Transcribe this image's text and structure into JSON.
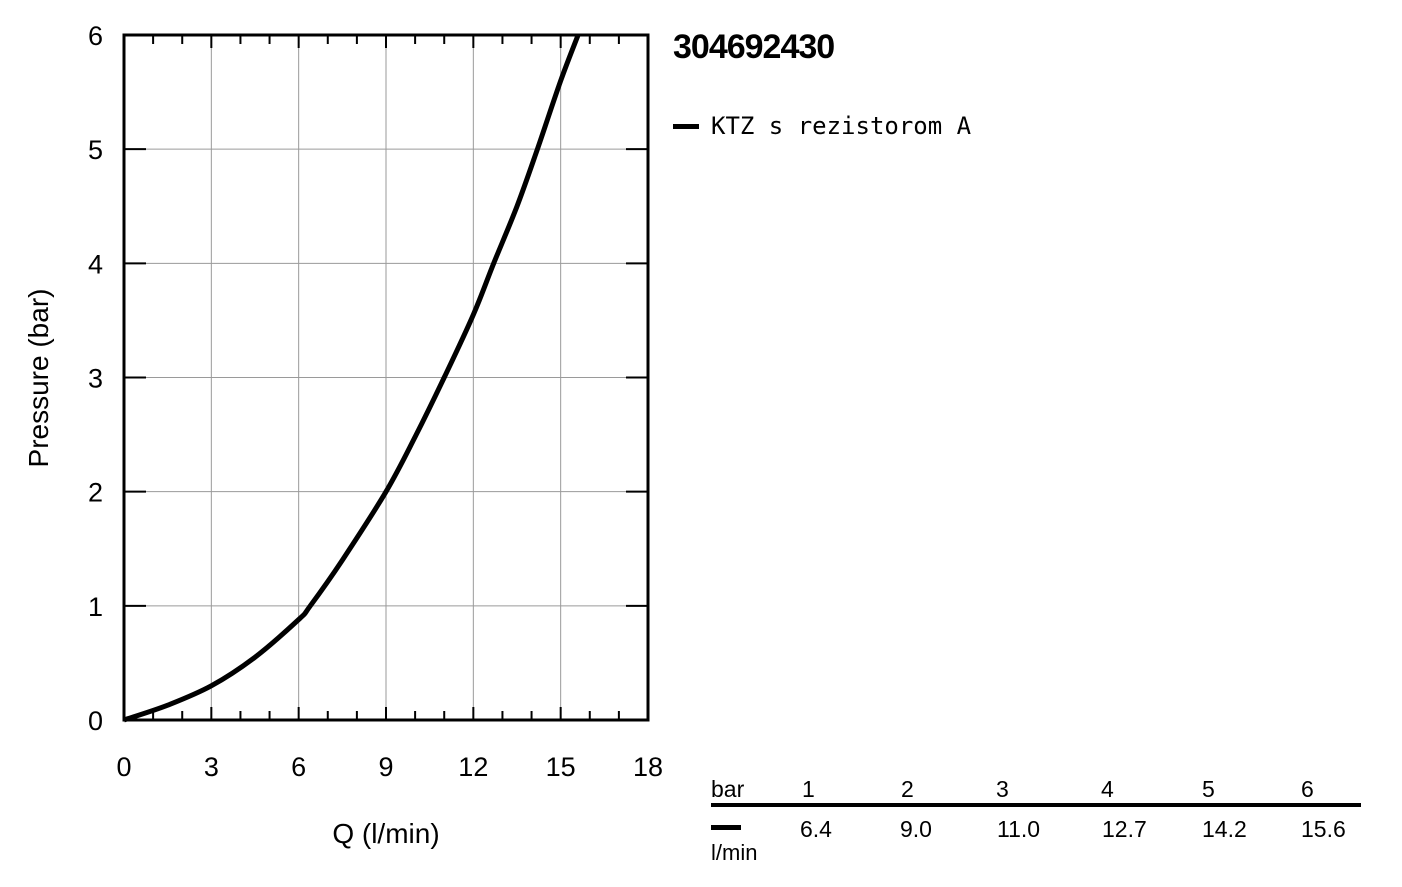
{
  "product": {
    "code": "304692430"
  },
  "chart_data": {
    "type": "line",
    "xlabel": "Q (l/min)",
    "ylabel": "Pressure (bar)",
    "xlim": [
      0,
      18
    ],
    "ylim": [
      0,
      6
    ],
    "x_ticks": [
      0,
      3,
      6,
      9,
      12,
      15,
      18
    ],
    "y_ticks": [
      0,
      1,
      2,
      3,
      4,
      5,
      6
    ],
    "grid": true,
    "legend_position": "top-right",
    "series": [
      {
        "name": "KTZ s rezistorom A",
        "color": "#000000",
        "x": [
          0,
          1.5,
          3.0,
          4.5,
          6.0,
          6.4,
          7.5,
          9.0,
          10.0,
          11.0,
          12.0,
          12.7,
          13.5,
          14.2,
          15.0,
          15.6
        ],
        "y": [
          0,
          0.13,
          0.3,
          0.55,
          0.88,
          1.0,
          1.4,
          2.0,
          2.48,
          3.0,
          3.55,
          4.0,
          4.5,
          5.0,
          5.6,
          6.0
        ]
      }
    ]
  },
  "flow_table": {
    "header_label": "bar",
    "unit_label": "l/min",
    "pressures": [
      "1",
      "2",
      "3",
      "4",
      "5",
      "6"
    ],
    "flows": [
      "6.4",
      "9.0",
      "11.0",
      "12.7",
      "14.2",
      "15.6"
    ]
  }
}
